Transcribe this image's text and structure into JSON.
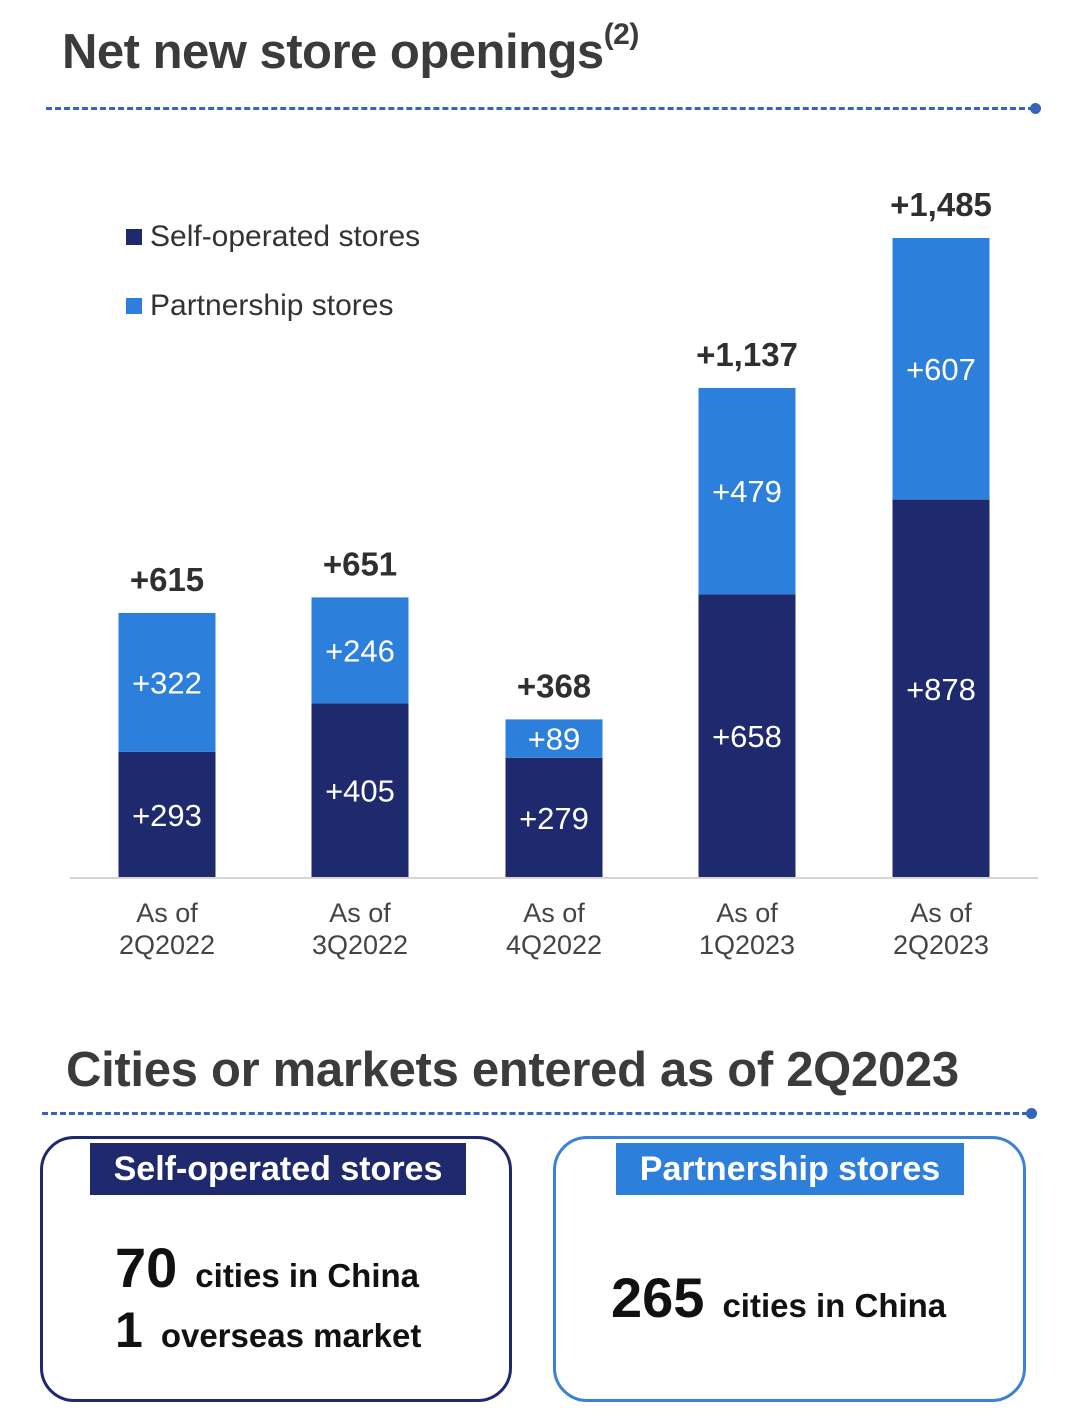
{
  "section1": {
    "title": "Net new store openings",
    "superscript": "(2)"
  },
  "section2": {
    "title": "Cities or markets entered as of 2Q2023"
  },
  "colors": {
    "self_operated": "#1f2a6e",
    "partnership": "#2d7fdc",
    "divider": "#3465b8"
  },
  "legend": {
    "self_operated": "Self-operated stores",
    "partnership": "Partnership stores"
  },
  "chart_data": {
    "type": "bar",
    "stacked": true,
    "title": "Net new store openings",
    "categories": [
      "As of 2Q2022",
      "As of 3Q2022",
      "As of 4Q2022",
      "As of 1Q2023",
      "As of 2Q2023"
    ],
    "category_lines": [
      [
        "As of",
        "2Q2022"
      ],
      [
        "As of",
        "3Q2022"
      ],
      [
        "As of",
        "4Q2022"
      ],
      [
        "As of",
        "1Q2023"
      ],
      [
        "As of",
        "2Q2023"
      ]
    ],
    "series": [
      {
        "name": "Self-operated stores",
        "values": [
          293,
          405,
          279,
          658,
          878
        ],
        "labels": [
          "+293",
          "+405",
          "+279",
          "+658",
          "+878"
        ]
      },
      {
        "name": "Partnership stores",
        "values": [
          322,
          246,
          89,
          479,
          607
        ],
        "labels": [
          "+322",
          "+246",
          "+89",
          "+479",
          "+607"
        ]
      }
    ],
    "totals": [
      615,
      651,
      368,
      1137,
      1485
    ],
    "total_labels": [
      "+615",
      "+651",
      "+368",
      "+1,137",
      "+1,485"
    ],
    "ylim": [
      0,
      1485
    ],
    "grid": false,
    "legend_position": "top-left"
  },
  "cards": {
    "self_operated": {
      "header": "Self-operated stores",
      "line1": {
        "number": "70",
        "text": "cities in China"
      },
      "line2": {
        "number": "1",
        "text": "overseas market"
      }
    },
    "partnership": {
      "header": "Partnership stores",
      "line1": {
        "number": "265",
        "text": "cities in China"
      }
    }
  }
}
